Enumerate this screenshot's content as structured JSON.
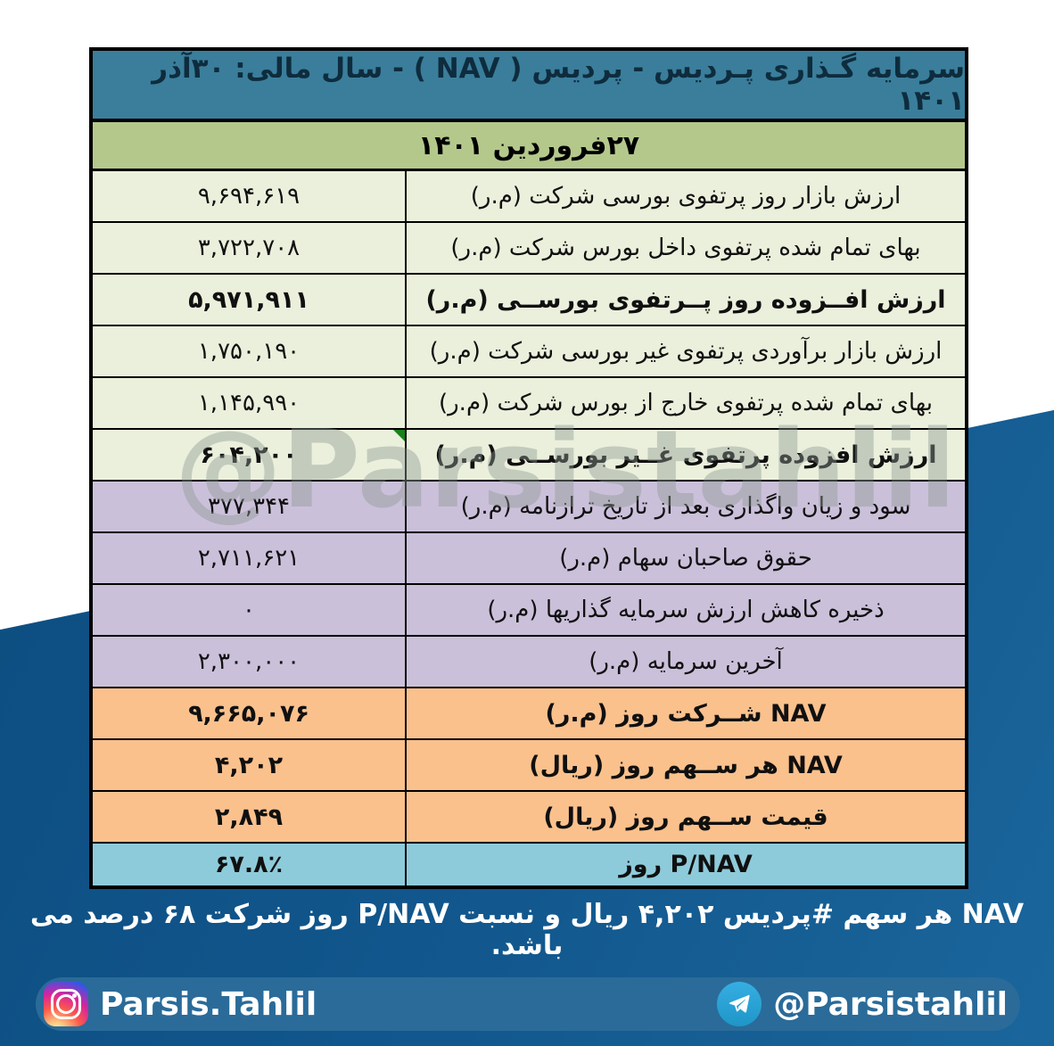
{
  "table": {
    "title": "سرمایه گـذاری پـردیس  - پردیس ( NAV ) - سال مالی: ۳۰آذر  ۱۴۰۱",
    "date_header": "۲۷فروردین  ۱۴۰۱",
    "rows": [
      {
        "value": "۹,۶۹۴,۶۱۹",
        "label": "ارزش بازار روز پرتفوی بورسی شرکت (م.ر)",
        "tone": "green",
        "bold": false,
        "marker": false
      },
      {
        "value": "۳,۷۲۲,۷۰۸",
        "label": "بهای تمام شده پرتفوی داخل بورس شرکت (م.ر)",
        "tone": "green",
        "bold": false,
        "marker": false
      },
      {
        "value": "۵,۹۷۱,۹۱۱",
        "label": "ارزش افــزوده روز پــرتفوی بورســی (م.ر)",
        "tone": "green",
        "bold": true,
        "marker": false
      },
      {
        "value": "۱,۷۵۰,۱۹۰",
        "label": "ارزش بازار برآوردی پرتفوی غیر بورسی شرکت (م.ر)",
        "tone": "green",
        "bold": false,
        "marker": false
      },
      {
        "value": "۱,۱۴۵,۹۹۰",
        "label": "بهای تمام شده پرتفوی خارج از بورس شرکت (م.ر)",
        "tone": "green",
        "bold": false,
        "marker": false
      },
      {
        "value": "۶۰۴,۲۰۰",
        "label": "ارزش افزوده پرتفوی غــیر بورســی (م.ر)",
        "tone": "green",
        "bold": true,
        "marker": true
      },
      {
        "value": "۳۷۷,۳۴۴",
        "label": "سود و زیان واگذاری بعد از تاریخ ترازنامه (م.ر)",
        "tone": "purple",
        "bold": false,
        "marker": false
      },
      {
        "value": "۲,۷۱۱,۶۲۱",
        "label": "حقوق صاحبان سهام (م.ر)",
        "tone": "purple",
        "bold": false,
        "marker": false
      },
      {
        "value": "۰",
        "label": "ذخیره کاهش ارزش سرمایه گذاریها (م.ر)",
        "tone": "purple",
        "bold": false,
        "marker": false
      },
      {
        "value": "۲,۳۰۰,۰۰۰",
        "label": "آخرین سرمایه (م.ر)",
        "tone": "purple",
        "bold": false,
        "marker": false
      },
      {
        "value": "۹,۶۶۵,۰۷۶",
        "label": "NAV شــرکت روز (م.ر)",
        "tone": "orange",
        "bold": true,
        "marker": false
      },
      {
        "value": "۴,۲۰۲",
        "label": "NAV هر ســهم روز (ریال)",
        "tone": "orange",
        "bold": true,
        "marker": false
      },
      {
        "value": "۲,۸۴۹",
        "label": "قیمت ســهم روز (ریال)",
        "tone": "orange",
        "bold": true,
        "marker": false
      },
      {
        "value": "۶۷.۸٪",
        "label": "P/NAV روز",
        "tone": "blue",
        "bold": true,
        "marker": false
      }
    ]
  },
  "watermark": "@Parsistahlil",
  "caption": "NAV هر سهم #پردیس ۴,۲۰۲ ریال و نسبت P/NAV روز شرکت ۶۸ درصد می باشد.",
  "footer": {
    "instagram_handle": "Parsis.Tahlil",
    "telegram_handle": "@Parsistahlil"
  },
  "colors": {
    "header_teal": "#3a7e9b",
    "date_green": "#b4c88c",
    "tones": {
      "green": "#ebf0dc",
      "purple": "#cbc0da",
      "orange": "#fac18d",
      "blue": "#8ecbda"
    },
    "navy_background": "#11568c",
    "footer_bar": "#2a6b99",
    "comment_marker_green": "#17821b"
  }
}
